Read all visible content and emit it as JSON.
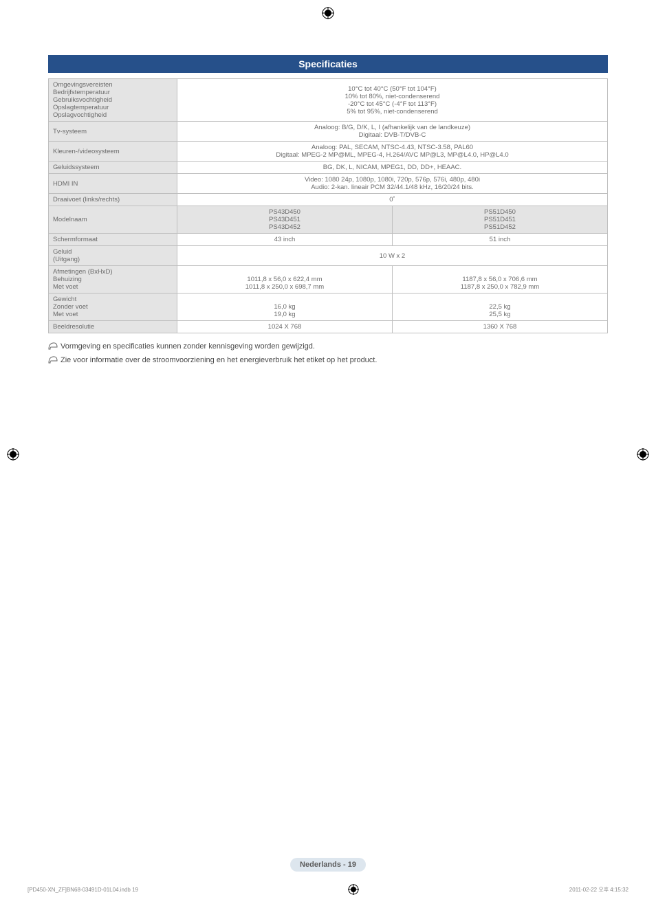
{
  "registration_color": "#000000",
  "header": {
    "title": "Specificaties"
  },
  "spec_table": {
    "label_col_width": "23%",
    "rows": [
      {
        "label_lines": [
          "Omgevingsvereisten",
          "Bedrijfstemperatuur",
          "Gebruiksvochtigheid",
          "Opslagtemperatuur",
          "Opslagvochtigheid"
        ],
        "value_lines": [
          "10°C tot 40°C (50°F tot 104°F)",
          "10% tot 80%, niet-condenserend",
          "-20°C tot 45°C (-4°F tot 113°F)",
          "5% tot 95%, niet-condenserend"
        ],
        "colspan": 2
      },
      {
        "label_lines": [
          "Tv-systeem"
        ],
        "value_lines": [
          "Analoog: B/G, D/K, L, I (afhankelijk van de landkeuze)",
          "Digitaal: DVB-T/DVB-C"
        ],
        "colspan": 2
      },
      {
        "label_lines": [
          "Kleuren-/videosysteem"
        ],
        "value_lines": [
          "Analoog: PAL, SECAM, NTSC-4.43, NTSC-3.58, PAL60",
          "Digitaal: MPEG-2 MP@ML, MPEG-4, H.264/AVC MP@L3, MP@L4.0, HP@L4.0"
        ],
        "colspan": 2
      },
      {
        "label_lines": [
          "Geluidssysteem"
        ],
        "value_lines": [
          "BG, DK, L, NICAM, MPEG1, DD, DD+, HEAAC."
        ],
        "colspan": 2
      },
      {
        "label_lines": [
          "HDMI IN"
        ],
        "value_lines": [
          "Video: 1080 24p, 1080p, 1080i, 720p, 576p, 576i, 480p, 480i",
          "Audio: 2-kan. lineair PCM 32/44.1/48 kHz, 16/20/24 bits."
        ],
        "colspan": 2
      },
      {
        "label_lines": [
          "Draaivoet (links/rechts)"
        ],
        "value_lines": [
          "0˚"
        ],
        "colspan": 2
      },
      {
        "label_lines": [
          "Modelnaam"
        ],
        "model_row": true,
        "col1_lines": [
          "PS43D450",
          "PS43D451",
          "PS43D452"
        ],
        "col2_lines": [
          "PS51D450",
          "PS51D451",
          "PS51D452"
        ]
      },
      {
        "label_lines": [
          "Schermformaat"
        ],
        "col1_lines": [
          "43 inch"
        ],
        "col2_lines": [
          "51 inch"
        ]
      },
      {
        "label_lines": [
          "Geluid",
          "(Uitgang)"
        ],
        "value_lines": [
          "10 W x 2"
        ],
        "colspan": 2
      },
      {
        "label_lines": [
          "Afmetingen (BxHxD)",
          "Behuizing",
          "Met voet"
        ],
        "col1_lines": [
          "",
          "1011,8 x 56,0 x 622,4 mm",
          "1011,8 x 250,0 x 698,7 mm"
        ],
        "col2_lines": [
          "",
          "1187,8 x 56,0 x 706,6 mm",
          "1187,8 x 250,0 x 782,9 mm"
        ]
      },
      {
        "label_lines": [
          "Gewicht",
          "Zonder voet",
          "Met voet"
        ],
        "col1_lines": [
          "",
          "16,0 kg",
          "19,0 kg"
        ],
        "col2_lines": [
          "",
          "22,5 kg",
          "25,5 kg"
        ]
      },
      {
        "label_lines": [
          "Beeldresolutie"
        ],
        "col1_lines": [
          "1024 X 768"
        ],
        "col2_lines": [
          "1360 X 768"
        ]
      }
    ]
  },
  "notes": [
    "Vormgeving en specificaties kunnen zonder kennisgeving worden gewijzigd.",
    "Zie voor informatie over de stroomvoorziening en het energieverbruik het etiket op het product."
  ],
  "footer_badge": "Nederlands - 19",
  "footer": {
    "left": "[PD450-XN_ZF]BN68-03491D-01L04.indb   19",
    "right": "2011-02-22   오후 4:15:32"
  }
}
